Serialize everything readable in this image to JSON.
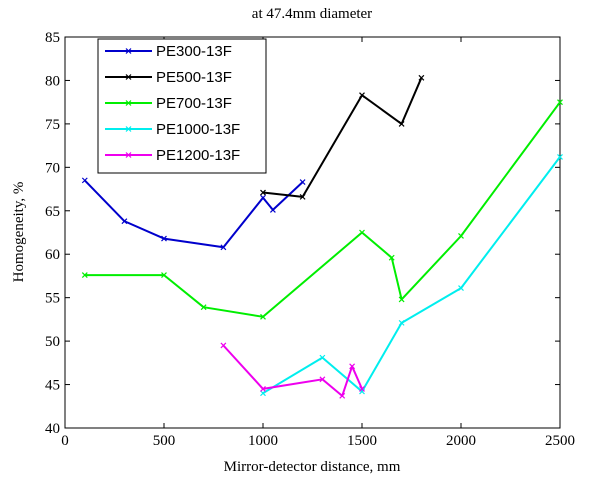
{
  "chart_data": {
    "type": "line",
    "title": "at 47.4mm diameter",
    "xlabel": "Mirror-detector distance, mm",
    "ylabel": "Homogeneity, %",
    "xlim": [
      0,
      2500
    ],
    "ylim": [
      40,
      85
    ],
    "xticks": [
      0,
      500,
      1000,
      1500,
      2000,
      2500
    ],
    "yticks": [
      40,
      45,
      50,
      55,
      60,
      65,
      70,
      75,
      80,
      85
    ],
    "grid": false,
    "legend_position": "top-left",
    "series": [
      {
        "name": "PE300-13F",
        "color": "#0000cc",
        "points": [
          [
            100,
            68.5
          ],
          [
            300,
            63.8
          ],
          [
            500,
            61.8
          ],
          [
            800,
            60.8
          ],
          [
            1000,
            66.5
          ],
          [
            1050,
            65.1
          ],
          [
            1200,
            68.3
          ]
        ]
      },
      {
        "name": "PE500-13F",
        "color": "#000000",
        "points": [
          [
            1000,
            67.1
          ],
          [
            1200,
            66.6
          ],
          [
            1500,
            78.3
          ],
          [
            1700,
            75.0
          ],
          [
            1800,
            80.3
          ]
        ]
      },
      {
        "name": "PE700-13F",
        "color": "#00ee00",
        "points": [
          [
            100,
            57.6
          ],
          [
            500,
            57.6
          ],
          [
            700,
            53.9
          ],
          [
            1000,
            52.8
          ],
          [
            1500,
            62.5
          ],
          [
            1650,
            59.6
          ],
          [
            1700,
            54.8
          ],
          [
            2000,
            62.1
          ],
          [
            2500,
            77.5
          ]
        ]
      },
      {
        "name": "PE1000-13F",
        "color": "#00eeee",
        "points": [
          [
            1000,
            44.0
          ],
          [
            1300,
            48.1
          ],
          [
            1500,
            44.2
          ],
          [
            1700,
            52.1
          ],
          [
            2000,
            56.1
          ],
          [
            2500,
            71.2
          ]
        ]
      },
      {
        "name": "PE1200-13F",
        "color": "#ee00ee",
        "points": [
          [
            800,
            49.5
          ],
          [
            1000,
            44.5
          ],
          [
            1300,
            45.6
          ],
          [
            1400,
            43.7
          ],
          [
            1450,
            47.1
          ],
          [
            1500,
            44.5
          ]
        ]
      }
    ]
  }
}
